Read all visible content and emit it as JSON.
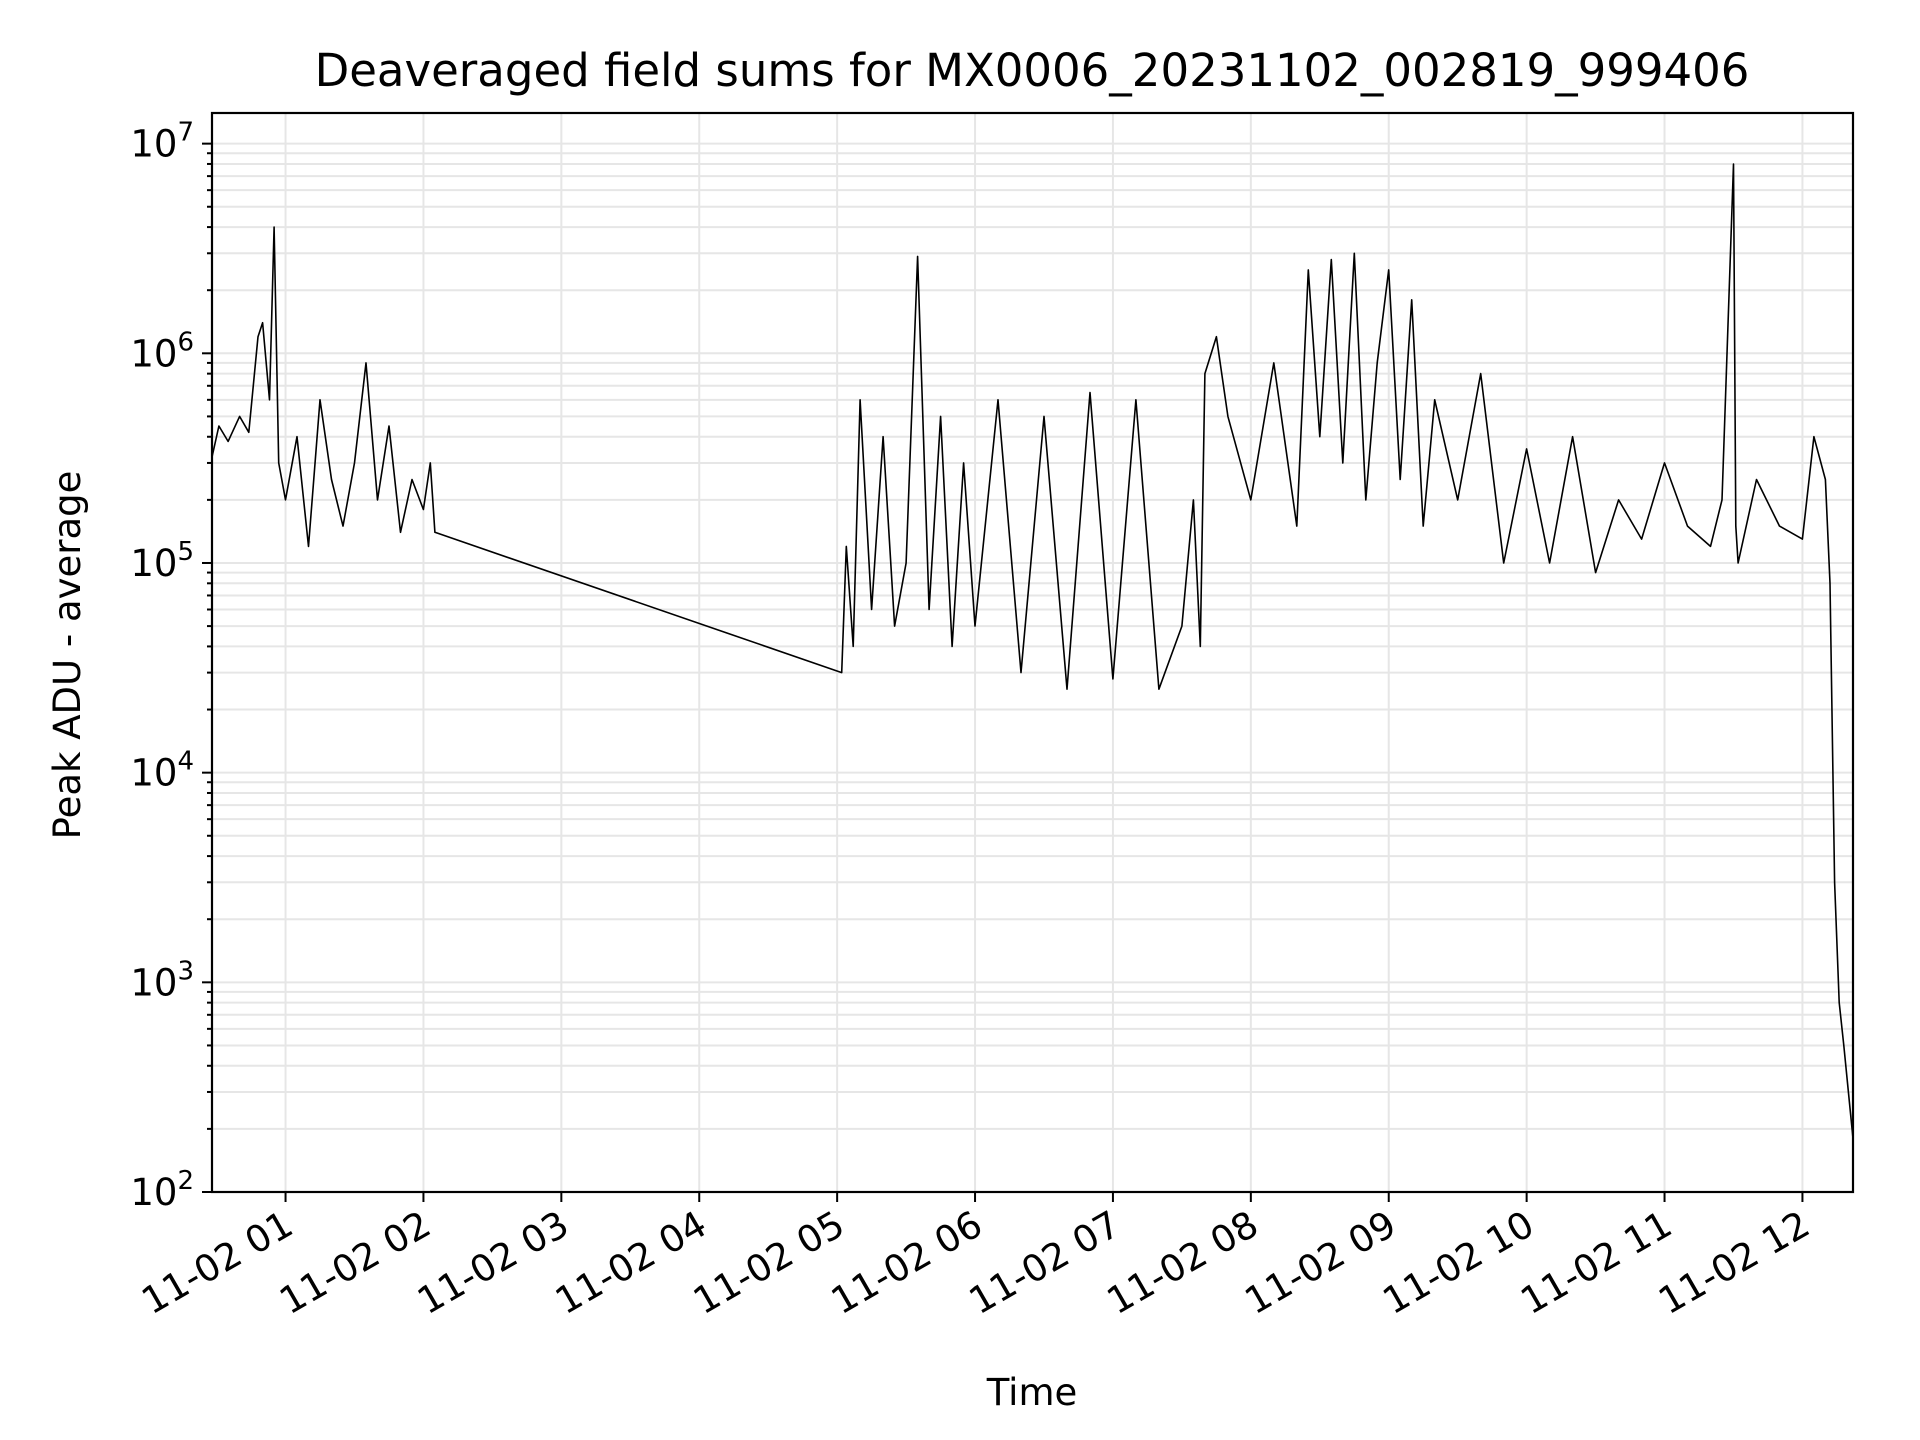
{
  "chart_data": {
    "type": "line",
    "title": "Deaveraged field sums for MX0006_20231102_002819_999406",
    "xlabel": "Time",
    "ylabel": "Peak ADU - average",
    "yscale": "log",
    "ylim": [
      100,
      14000000
    ],
    "xlim": [
      "2023-11-02 00:28",
      "2023-11-02 12:22"
    ],
    "grid": true,
    "x_ticks": [
      "11-02 01",
      "11-02 02",
      "11-02 03",
      "11-02 04",
      "11-02 05",
      "11-02 06",
      "11-02 07",
      "11-02 08",
      "11-02 09",
      "11-02 10",
      "11-02 11",
      "11-02 12"
    ],
    "y_ticks": [
      {
        "base": "10",
        "exp": "2"
      },
      {
        "base": "10",
        "exp": "3"
      },
      {
        "base": "10",
        "exp": "4"
      },
      {
        "base": "10",
        "exp": "5"
      },
      {
        "base": "10",
        "exp": "6"
      },
      {
        "base": "10",
        "exp": "7"
      }
    ],
    "line_color": "#000000",
    "series": [
      {
        "x": [
          "00:28",
          "00:31",
          "00:35",
          "00:40",
          "00:44",
          "00:48",
          "00:50",
          "00:53",
          "00:55",
          "00:57",
          "01:00",
          "01:05",
          "01:10",
          "01:15",
          "01:20",
          "01:25",
          "01:30",
          "01:35",
          "01:40",
          "01:45",
          "01:50",
          "01:55",
          "02:00",
          "02:03",
          "02:05",
          "05:02",
          "05:04",
          "05:07",
          "05:10",
          "05:15",
          "05:20",
          "05:25",
          "05:30",
          "05:35",
          "05:40",
          "05:45",
          "05:50",
          "05:55",
          "06:00",
          "06:10",
          "06:20",
          "06:30",
          "06:40",
          "06:50",
          "07:00",
          "07:10",
          "07:20",
          "07:30",
          "07:35",
          "07:38",
          "07:40",
          "07:45",
          "07:50",
          "08:00",
          "08:10",
          "08:20",
          "08:25",
          "08:30",
          "08:35",
          "08:40",
          "08:45",
          "08:50",
          "08:55",
          "09:00",
          "09:05",
          "09:10",
          "09:15",
          "09:20",
          "09:30",
          "09:40",
          "09:50",
          "10:00",
          "10:10",
          "10:20",
          "10:30",
          "10:40",
          "10:50",
          "11:00",
          "11:10",
          "11:20",
          "11:25",
          "11:30",
          "11:31",
          "11:32",
          "11:40",
          "11:50",
          "12:00",
          "12:05",
          "12:10",
          "12:12",
          "12:14",
          "12:16",
          "12:18",
          "12:20",
          "12:22"
        ],
        "y": [
          320000,
          450000,
          380000,
          500000,
          420000,
          1200000,
          1400000,
          600000,
          4000000,
          300000,
          200000,
          400000,
          120000,
          600000,
          250000,
          150000,
          300000,
          900000,
          200000,
          450000,
          140000,
          250000,
          180000,
          300000,
          140000,
          30000,
          120000,
          40000,
          600000,
          60000,
          400000,
          50000,
          100000,
          2900000,
          60000,
          500000,
          40000,
          300000,
          50000,
          600000,
          30000,
          500000,
          25000,
          650000,
          28000,
          600000,
          25000,
          50000,
          200000,
          40000,
          800000,
          1200000,
          500000,
          200000,
          900000,
          150000,
          2500000,
          400000,
          2800000,
          300000,
          3000000,
          200000,
          900000,
          2500000,
          250000,
          1800000,
          150000,
          600000,
          200000,
          800000,
          100000,
          350000,
          100000,
          400000,
          90000,
          200000,
          130000,
          300000,
          150000,
          120000,
          200000,
          8000000,
          150000,
          100000,
          250000,
          150000,
          130000,
          400000,
          250000,
          80000,
          3000,
          800,
          500,
          300,
          180
        ]
      }
    ]
  }
}
